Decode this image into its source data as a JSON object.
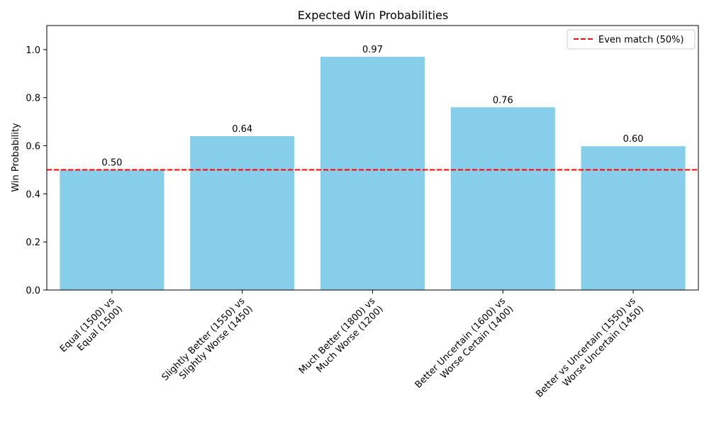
{
  "chart_data": {
    "type": "bar",
    "title": "Expected Win Probabilities",
    "xlabel": "",
    "ylabel": "Win Probability",
    "categories": [
      [
        "Equal (1500) vs",
        "Equal (1500)"
      ],
      [
        "Slightly Better (1550) vs",
        "Slightly Worse (1450)"
      ],
      [
        "Much Better (1800) vs",
        "Much Worse (1200)"
      ],
      [
        "Better Uncertain (1600) vs",
        "Worse Certain (1400)"
      ],
      [
        "Better vs Uncertain (1550) vs",
        "Worse Uncertain (1450)"
      ]
    ],
    "values": [
      0.5,
      0.64,
      0.97,
      0.76,
      0.598
    ],
    "value_labels": [
      "0.50",
      "0.64",
      "0.97",
      "0.76",
      "0.60"
    ],
    "ylim": [
      0,
      1.1
    ],
    "yticks": [
      0.0,
      0.2,
      0.4,
      0.6,
      0.8,
      1.0
    ],
    "ytick_labels": [
      "0.0",
      "0.2",
      "0.4",
      "0.6",
      "0.8",
      "1.0"
    ],
    "reference_line": {
      "y": 0.5,
      "label": "Even match (50%)",
      "color": "#ff0000",
      "style": "dashed"
    },
    "bar_color": "#87ceeb",
    "legend": {
      "position": "top-right",
      "entries": [
        "Even match (50%)"
      ]
    },
    "grid": false
  }
}
